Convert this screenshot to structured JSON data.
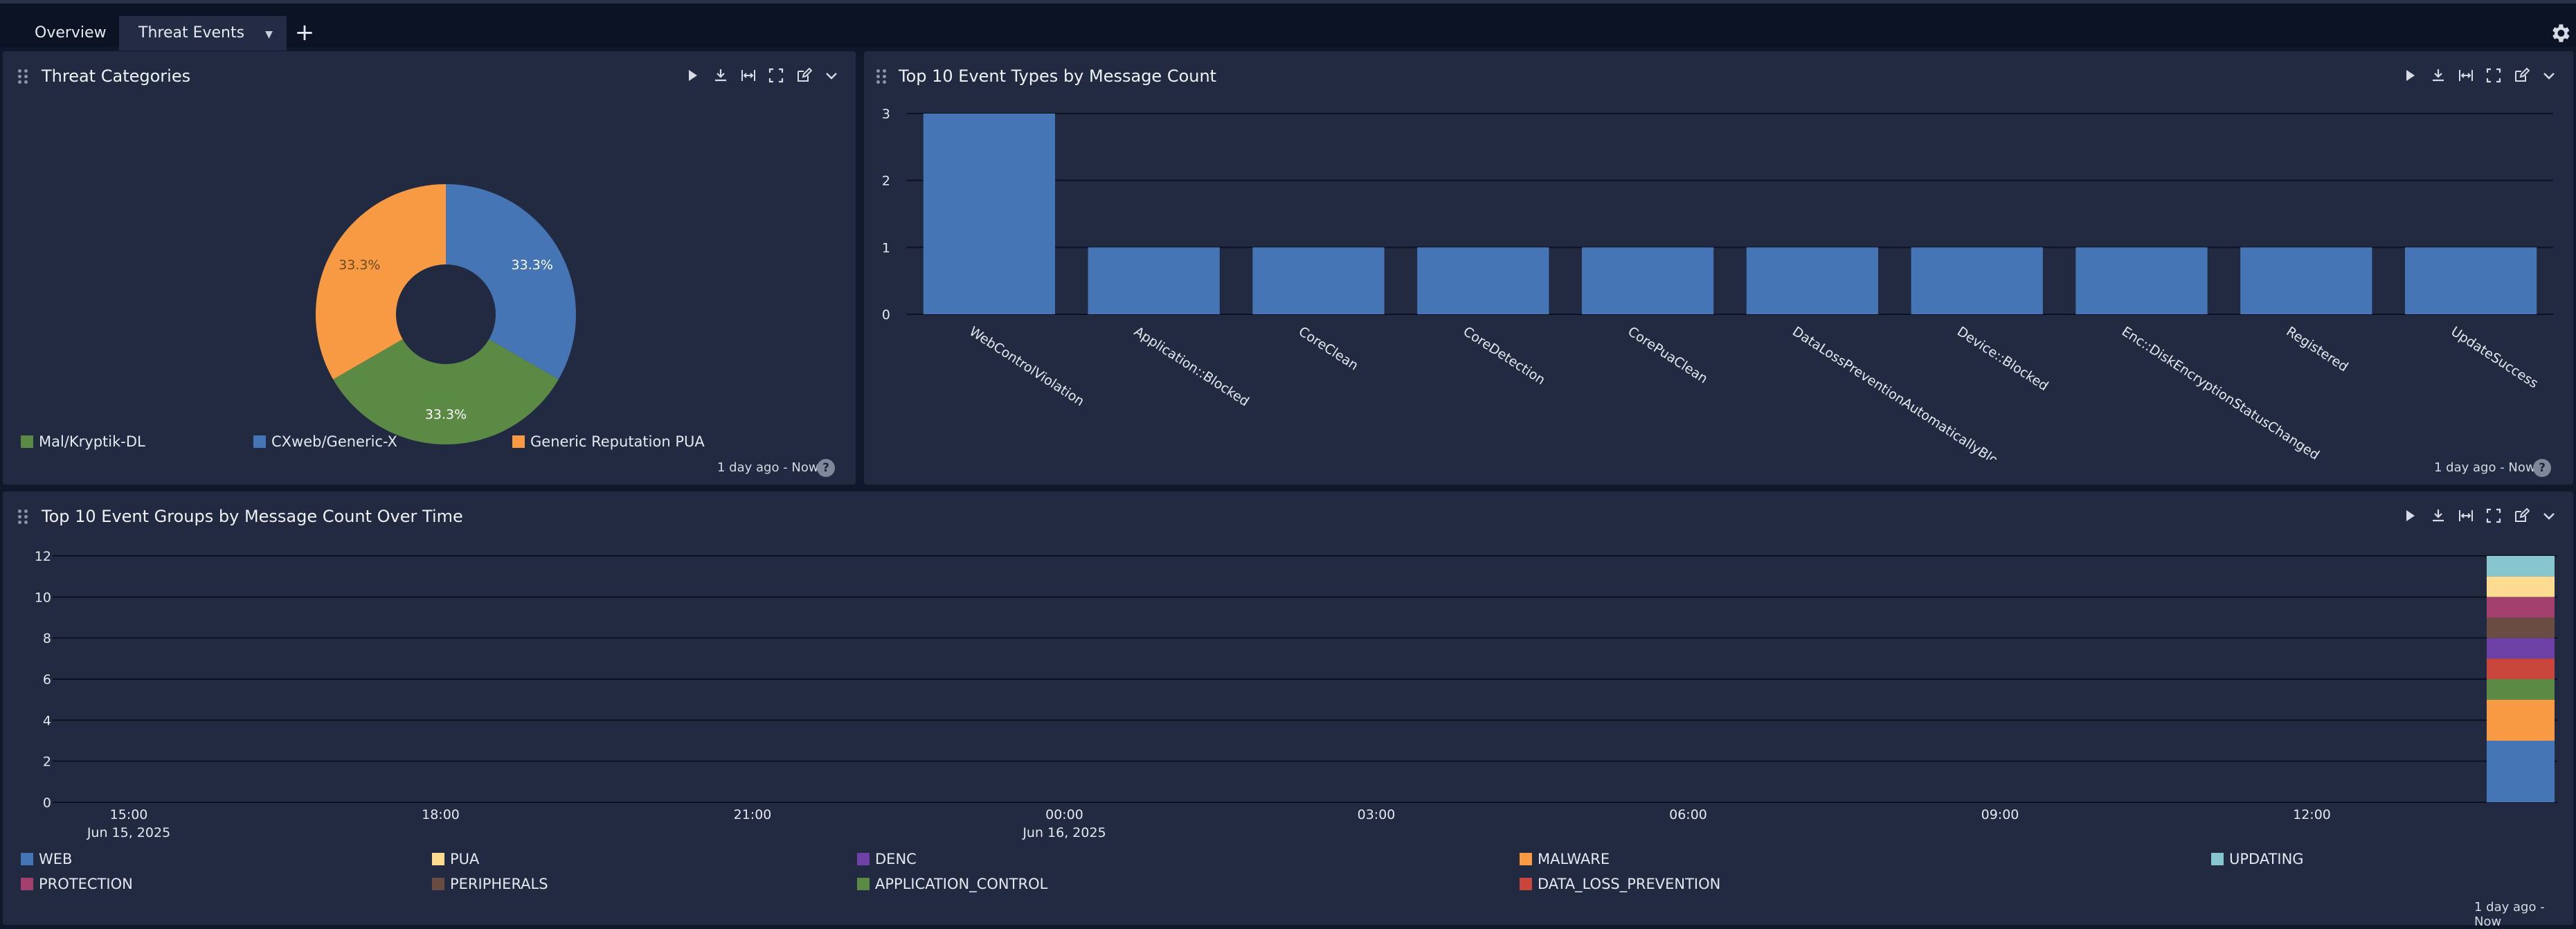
{
  "tabs": [
    {
      "label": "Overview"
    },
    {
      "label": "Threat Events"
    }
  ],
  "icons": {
    "add": "plus-icon",
    "settings": "gear-icon",
    "drag": "drag-handle-icon",
    "run": "play-icon",
    "download": "download-icon",
    "fit": "fit-width-icon",
    "fullscreen": "fullscreen-icon",
    "edit": "edit-icon",
    "menu": "chevron-down-icon",
    "help": "help-icon"
  },
  "panel1": {
    "title": "Threat Categories",
    "time_range": "1 day ago - Now",
    "help": "?",
    "chart_data": {
      "type": "pie",
      "slices": [
        {
          "label": "CXweb/Generic-X",
          "value": 33.3,
          "text": "33.3%",
          "color": "#4575b4"
        },
        {
          "label": "Mal/Kryptik-DL",
          "value": 33.3,
          "text": "33.3%",
          "color": "#5b8a45"
        },
        {
          "label": "Generic Reputation PUA",
          "value": 33.3,
          "text": "33.3%",
          "color": "#f79a43"
        }
      ],
      "legend": [
        "Mal/Kryptik-DL",
        "CXweb/Generic-X",
        "Generic Reputation PUA"
      ],
      "legend_colors": [
        "#5b8a45",
        "#4575b4",
        "#f79a43"
      ]
    }
  },
  "panel2": {
    "title": "Top 10 Event Types by Message Count",
    "time_range": "1 day ago - Now",
    "help": "?",
    "chart_data": {
      "type": "bar",
      "categories": [
        "WebControlViolation",
        "Application::Blocked",
        "CoreClean",
        "CoreDetection",
        "CorePuaClean",
        "DataLossPreventionAutomaticallyBlocked",
        "Device::Blocked",
        "Enc::DiskEncryptionStatusChanged",
        "Registered",
        "UpdateSuccess"
      ],
      "values": [
        3,
        1,
        1,
        1,
        1,
        1,
        1,
        1,
        1,
        1
      ],
      "ylim": [
        0,
        3
      ],
      "yticks": [
        "0",
        "1",
        "2",
        "3"
      ],
      "color": "#4575b4"
    }
  },
  "panel3": {
    "title": "Top 10 Event Groups by Message Count Over Time",
    "time_range": "1 day ago - Now",
    "help": "?",
    "chart_data": {
      "type": "bar",
      "stacked": true,
      "ylim": [
        0,
        12
      ],
      "yticks": [
        "0",
        "2",
        "4",
        "6",
        "8",
        "10",
        "12"
      ],
      "xticks": [
        {
          "time": "15:00",
          "date": "Jun 15, 2025"
        },
        {
          "time": "18:00",
          "date": ""
        },
        {
          "time": "21:00",
          "date": ""
        },
        {
          "time": "00:00",
          "date": "Jun 16, 2025"
        },
        {
          "time": "03:00",
          "date": ""
        },
        {
          "time": "06:00",
          "date": ""
        },
        {
          "time": "09:00",
          "date": ""
        },
        {
          "time": "12:00",
          "date": ""
        }
      ],
      "series": [
        {
          "name": "WEB",
          "values": [
            3
          ],
          "color": "#4575b4"
        },
        {
          "name": "MALWARE",
          "values": [
            2
          ],
          "color": "#f79a43"
        },
        {
          "name": "APPLICATION_CONTROL",
          "values": [
            1
          ],
          "color": "#5b8a45"
        },
        {
          "name": "DATA_LOSS_PREVENTION",
          "values": [
            1
          ],
          "color": "#c9463d"
        },
        {
          "name": "DENC",
          "values": [
            1
          ],
          "color": "#6e41a6"
        },
        {
          "name": "PERIPHERALS",
          "values": [
            1
          ],
          "color": "#6b4c43"
        },
        {
          "name": "PROTECTION",
          "values": [
            1
          ],
          "color": "#a4406d"
        },
        {
          "name": "PUA",
          "values": [
            1
          ],
          "color": "#fddc92"
        },
        {
          "name": "UPDATING",
          "values": [
            1
          ],
          "color": "#88c6cf"
        }
      ],
      "legend_rows": [
        [
          "WEB",
          "PUA",
          "DENC",
          "MALWARE",
          "UPDATING"
        ],
        [
          "PROTECTION",
          "PERIPHERALS",
          "APPLICATION_CONTROL",
          "DATA_LOSS_PREVENTION"
        ]
      ]
    }
  }
}
